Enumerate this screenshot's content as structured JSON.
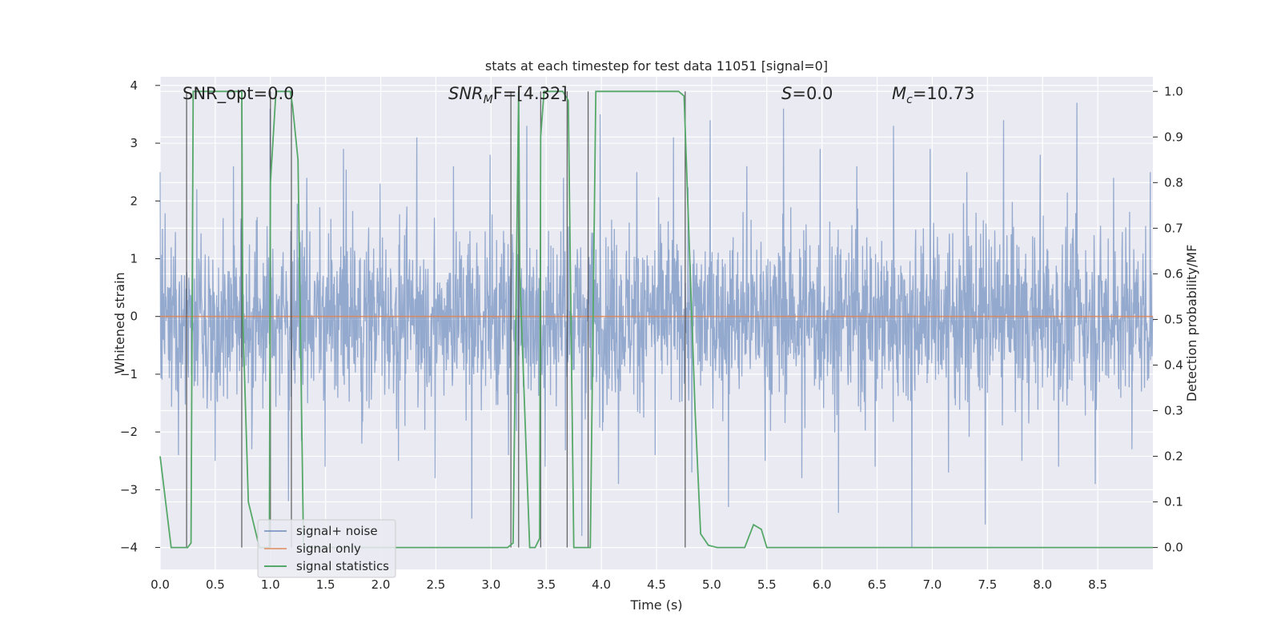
{
  "chart_data": {
    "type": "line",
    "title": "stats at each timestep for test data 11051 [signal=0]",
    "xlabel": "Time (s)",
    "ylabel_left": "Whitened strain",
    "ylabel_right": "Detection probability/MF",
    "xlim": [
      0.0,
      9.0
    ],
    "ylim_left": [
      -4.38,
      4.15
    ],
    "ylim_right": [
      -0.048,
      1.032
    ],
    "x_ticks": [
      "0.0",
      "0.5",
      "1.0",
      "1.5",
      "2.0",
      "2.5",
      "3.0",
      "3.5",
      "4.0",
      "4.5",
      "5.0",
      "5.5",
      "6.0",
      "6.5",
      "7.0",
      "7.5",
      "8.0",
      "8.5"
    ],
    "y_ticks_left": [
      "4",
      "3",
      "2",
      "1",
      "0",
      "−1",
      "−2",
      "−3",
      "−4"
    ],
    "y_ticks_right": [
      "1.0",
      "0.9",
      "0.8",
      "0.7",
      "0.6",
      "0.5",
      "0.4",
      "0.3",
      "0.2",
      "0.1",
      "0.0"
    ],
    "grid": true,
    "legend_placement": "lower-left",
    "annotations": [
      {
        "id": "snr-opt",
        "text": "SNR_opt=0.0",
        "x": 0.19
      },
      {
        "id": "snr-mf",
        "text": "SNR",
        "sub": "M",
        "rest": "F=[4.32]",
        "x": 2.6
      },
      {
        "id": "s",
        "text": "S",
        "rest": "=0.0",
        "x": 5.6
      },
      {
        "id": "mc",
        "text": "M",
        "sub": "c",
        "rest": "=10.73",
        "x": 6.6
      }
    ],
    "series": [
      {
        "name": "signal+ noise",
        "color": "#4c72b0",
        "note": "dense whitened-noise trace, approx. Gaussian, |strain| up to ~3.9",
        "envelope_peak_samples": [
          2.5,
          -2.4,
          2.2,
          -2.5,
          2.6,
          -2.3,
          3.6,
          -3.2,
          2.4,
          -2.6,
          2.9,
          -2.2,
          2.3,
          -2.5,
          3.1,
          -2.8,
          2.6,
          -3.5,
          2.8,
          -2.4,
          3.3,
          -2.6,
          2.4,
          -3.8,
          3.5,
          -2.9,
          2.5,
          -2.4,
          3.1,
          -2.7,
          3.4,
          -3.3,
          2.6,
          -2.5,
          3.6,
          -2.8,
          2.9,
          -3.4,
          2.6,
          -2.6,
          3.3,
          -4.0,
          2.9,
          -2.7,
          2.5,
          -3.6,
          3.4,
          -2.5,
          2.8,
          -2.6,
          3.7,
          -2.9,
          2.4,
          -2.3
        ]
      },
      {
        "name": "signal only",
        "color": "#dd8452",
        "values": "0 for all t"
      },
      {
        "name": "signal statistics",
        "color": "#55a868",
        "axis": "right",
        "x": [
          0.0,
          0.05,
          0.1,
          0.25,
          0.28,
          0.3,
          0.4,
          0.5,
          0.6,
          0.7,
          0.74,
          0.75,
          0.8,
          0.9,
          0.95,
          0.99,
          1.0,
          1.05,
          1.1,
          1.18,
          1.2,
          1.25,
          1.3,
          1.35,
          1.4,
          1.5,
          2.0,
          2.5,
          3.0,
          3.15,
          3.2,
          3.25,
          3.26,
          3.35,
          3.4,
          3.44,
          3.45,
          3.48,
          3.55,
          3.65,
          3.7,
          3.75,
          3.8,
          3.85,
          3.9,
          3.95,
          4.0,
          4.5,
          4.7,
          4.75,
          4.85,
          4.9,
          4.97,
          5.05,
          5.15,
          5.3,
          5.38,
          5.45,
          5.5,
          5.6,
          6.0,
          7.0,
          8.0,
          9.0
        ],
        "values": [
          0.2,
          0.1,
          0.0,
          0.0,
          0.01,
          1.0,
          1.0,
          1.0,
          1.0,
          1.0,
          1.0,
          0.5,
          0.1,
          0.0,
          0.0,
          0.0,
          0.8,
          1.0,
          1.0,
          1.0,
          0.97,
          0.85,
          0.0,
          0.0,
          0.0,
          0.0,
          0.0,
          0.0,
          0.0,
          0.0,
          0.01,
          1.0,
          0.6,
          0.0,
          0.0,
          0.02,
          0.9,
          1.0,
          1.0,
          1.0,
          0.98,
          0.0,
          0.0,
          0.0,
          0.0,
          1.0,
          1.0,
          1.0,
          1.0,
          0.99,
          0.3,
          0.03,
          0.005,
          0.0,
          0.0,
          0.0,
          0.05,
          0.04,
          0.0,
          0.0,
          0.0,
          0.0,
          0.0,
          0.0
        ]
      }
    ],
    "vertical_markers_s": [
      0.24,
      0.74,
      1.0,
      1.19,
      3.18,
      3.25,
      3.45,
      3.69,
      3.88,
      4.76
    ],
    "noise_color": "#4c72b0",
    "signal_color": "#dd8452",
    "stats_color": "#55a868",
    "axes_background": "#eaeaf2"
  }
}
